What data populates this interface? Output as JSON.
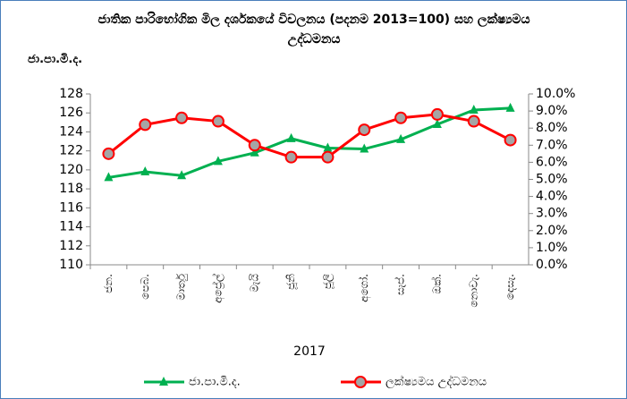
{
  "chart_data": {
    "type": "line",
    "title": "ජාතික පාරිභෝගික මිල දර්ශකයේ විචලනය (පදනම 2013=100)  සහ ලක්ෂ්‍යමය උද්ධමනය",
    "y_label": "ජා.පා.මි.ද.",
    "x_label": "2017",
    "categories": [
      "ජන.",
      "පෙබ.",
      "මාර්තු",
      "අප්‍රේල්",
      "මැයි",
      "ජූනි",
      "ජූලි",
      "අගෝ.",
      "සැප්.",
      "ඔක්.",
      "නොවැ.",
      "දෙසැ."
    ],
    "series": [
      {
        "name": "ජා.පා.මි.ද.",
        "color": "#00b050",
        "marker": "triangle",
        "values": [
          119.2,
          119.8,
          119.4,
          120.9,
          121.8,
          123.3,
          122.3,
          122.2,
          123.2,
          124.8,
          126.3,
          126.5
        ]
      },
      {
        "name": "ලක්ෂ්‍යමය උද්ධමනය",
        "color": "#ff0000",
        "marker": "circle",
        "axis": "y2",
        "values": [
          6.5,
          8.2,
          8.6,
          8.4,
          7.0,
          6.3,
          6.3,
          7.9,
          8.6,
          8.8,
          8.4,
          7.3
        ]
      }
    ],
    "ylim": [
      110,
      128
    ],
    "yticks": [
      110,
      112,
      114,
      116,
      118,
      120,
      122,
      124,
      126,
      128
    ],
    "y2lim": [
      0,
      10
    ],
    "y2ticks": [
      {
        "value": 0,
        "label": "0.0%"
      },
      {
        "value": 1,
        "label": "1.0%"
      },
      {
        "value": 2,
        "label": "2.0%"
      },
      {
        "value": 3,
        "label": "3.0%"
      },
      {
        "value": 4,
        "label": "4.0%"
      },
      {
        "value": 5,
        "label": "5.0%"
      },
      {
        "value": 6,
        "label": "6.0%"
      },
      {
        "value": 7,
        "label": "7.0%"
      },
      {
        "value": 8,
        "label": "8.0%"
      },
      {
        "value": 9,
        "label": "9.0%"
      },
      {
        "value": 10,
        "label": "10.0%"
      }
    ],
    "grid": false
  }
}
